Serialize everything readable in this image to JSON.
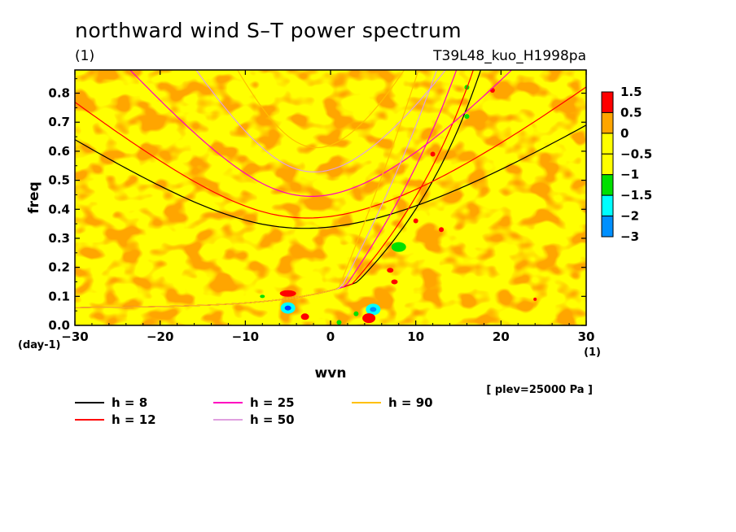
{
  "title": "northward wind S–T power spectrum",
  "subtitle_left": "(1)",
  "subtitle_right": "T39L48_kuo_H1998pa",
  "level_note": "[ plev=25000 Pa ]",
  "colors": {
    "fill_orange": "#ffa500",
    "fill_yellow": "#ffff00",
    "fill_red": "#ff0000",
    "fill_green": "#00e000",
    "fill_cyan": "#00ffff",
    "fill_blue": "#0090ff",
    "fill_darkblue": "#0040ff"
  },
  "chart_data": {
    "type": "heatmap",
    "xlabel": "wvn",
    "ylabel": "freq",
    "x_unit": "(1)",
    "y_unit": "(day-1)",
    "xlim": [
      -30,
      30
    ],
    "ylim": [
      0.0,
      0.88
    ],
    "x_ticks": [
      "−30",
      "−20",
      "−10",
      "0",
      "10",
      "20",
      "30"
    ],
    "y_ticks": [
      "0.0",
      "0.1",
      "0.2",
      "0.3",
      "0.4",
      "0.5",
      "0.6",
      "0.7",
      "0.8"
    ],
    "colorbar": {
      "labels": [
        "1.5",
        "0.5",
        "0",
        "−0.5",
        "−1",
        "−1.5",
        "−2",
        "−3"
      ],
      "colors": [
        "#ff0000",
        "#ffa500",
        "#ffff00",
        "#ffff00",
        "#00e000",
        "#00ffff",
        "#0090ff",
        "#0040ff"
      ]
    },
    "dispersion_curves": [
      {
        "name": "h =  8",
        "color": "#000000",
        "h": 8
      },
      {
        "name": "h = 12",
        "color": "#ff0000",
        "h": 12
      },
      {
        "name": "h = 25",
        "color": "#ff00c0",
        "h": 25
      },
      {
        "name": "h = 50",
        "color": "#e0a0e0",
        "h": 50
      },
      {
        "name": "h = 90",
        "color": "#ffc000",
        "h": 90
      }
    ]
  }
}
